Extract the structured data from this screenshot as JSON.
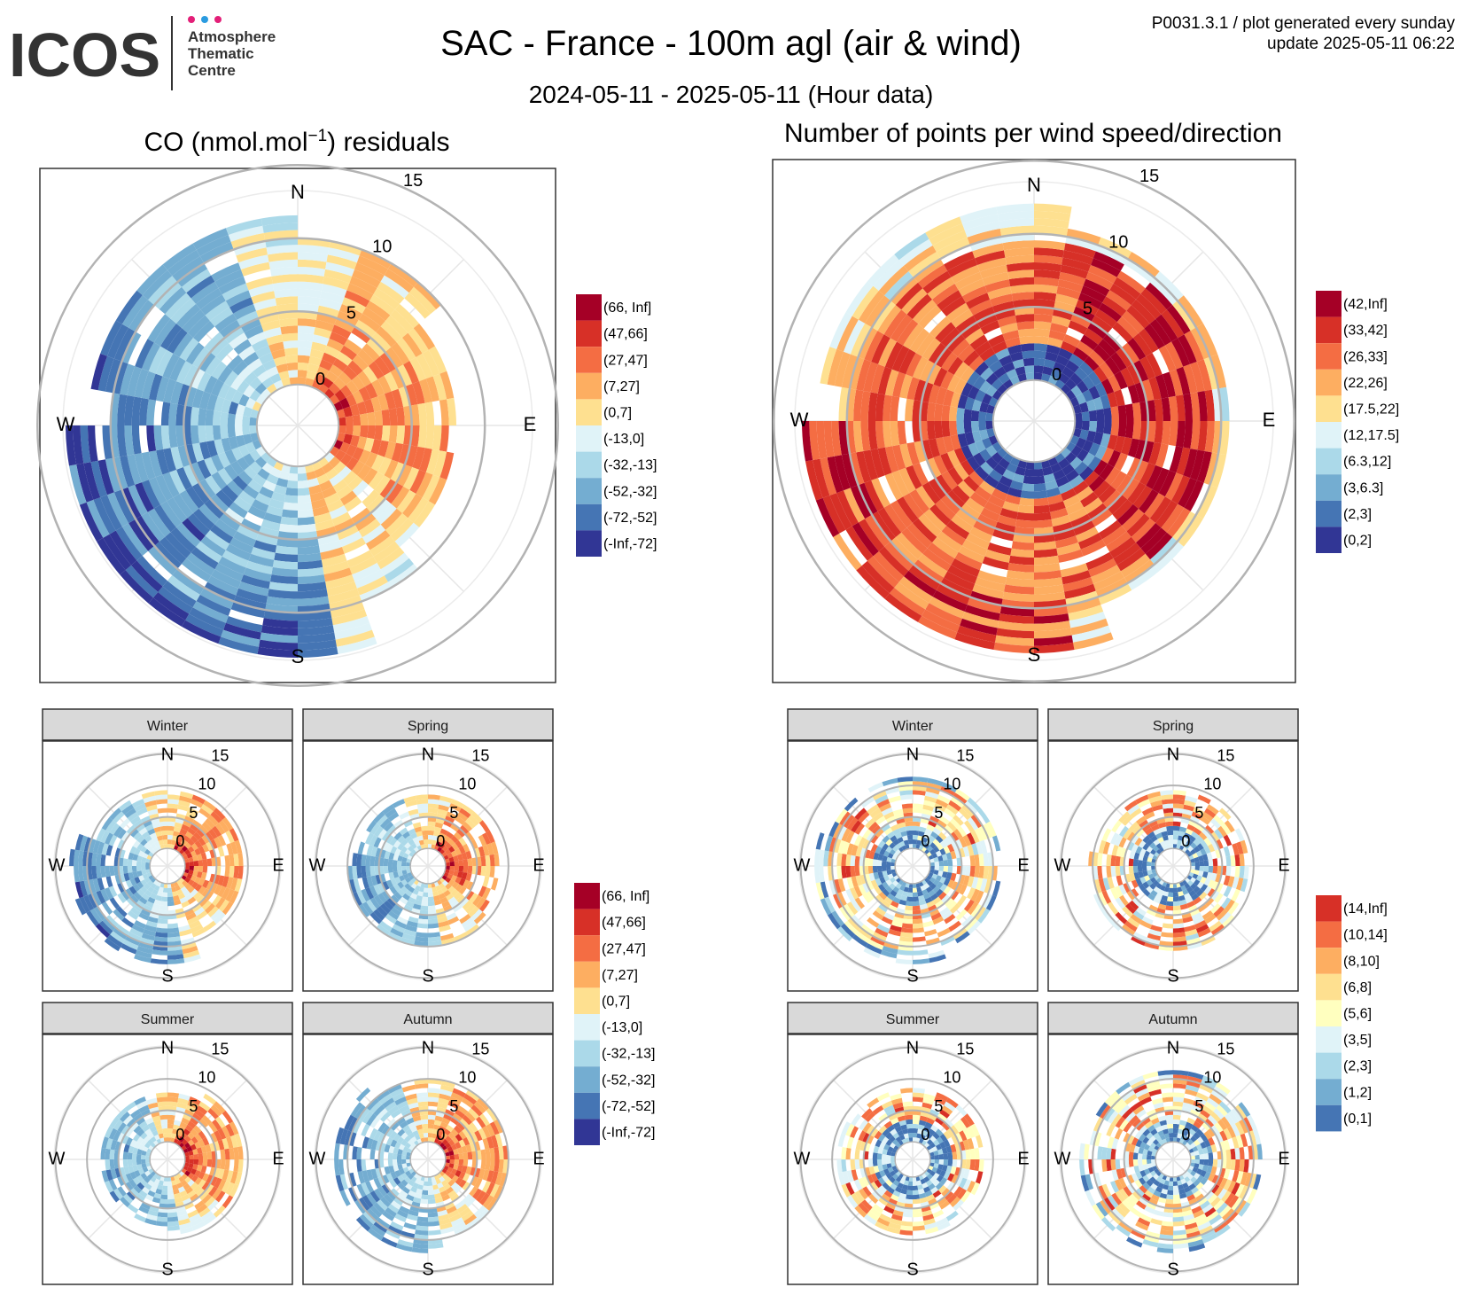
{
  "logo": {
    "wordmark": "ICOS",
    "line1": "Atmosphere",
    "line2": "Thematic",
    "line3": "Centre"
  },
  "header": {
    "title": "SAC - France - 100m agl (air & wind)",
    "subtitle": "2024-05-11 - 2025-05-11 (Hour data)",
    "meta_line1": "P0031.3.1 / plot generated every sunday",
    "meta_line2": "update  2025-05-11 06:22"
  },
  "left_title": {
    "pre": "CO (nmol.mol",
    "sup": "−1",
    "post": ") residuals"
  },
  "right_title": "Number of points per wind speed/direction",
  "compass": {
    "n": "N",
    "e": "E",
    "s": "S",
    "w": "W"
  },
  "speed_ticks": [
    "0",
    "5",
    "10",
    "15"
  ],
  "seasons": [
    "Winter",
    "Spring",
    "Summer",
    "Autumn"
  ],
  "legend_residuals": [
    "(66, Inf]",
    "(47,66]",
    "(27,47]",
    "(7,27]",
    "(0,7]",
    "(-13,0]",
    "(-32,-13]",
    "(-52,-32]",
    "(-72,-52]",
    "(-Inf,-72]"
  ],
  "legend_count": [
    "(42,Inf]",
    "(33,42]",
    "(26,33]",
    "(22,26]",
    "(17.5,22]",
    "(12,17.5]",
    "(6.3,12]",
    "(3,6.3]",
    "(2,3]",
    "(0,2]"
  ],
  "legend_season_count": [
    "(14,Inf]",
    "(10,14]",
    "(8,10]",
    "(6,8]",
    "(5,6]",
    "(3,5]",
    "(2,3]",
    "(1,2]",
    "(0,1]"
  ],
  "colors": {
    "residuals": [
      "#a50026",
      "#d73027",
      "#f46d43",
      "#fdae61",
      "#fee090",
      "#e0f3f8",
      "#abd9e9",
      "#74add1",
      "#4575b4",
      "#313695"
    ],
    "count": [
      "#a50026",
      "#d73027",
      "#f46d43",
      "#fdae61",
      "#fee090",
      "#e0f3f8",
      "#abd9e9",
      "#74add1",
      "#4575b4",
      "#313695"
    ],
    "season_count": [
      "#d73027",
      "#f46d43",
      "#fdae61",
      "#fee090",
      "#ffffbf",
      "#e0f3f8",
      "#abd9e9",
      "#74add1",
      "#4575b4"
    ],
    "strip": "#d9d9d9"
  },
  "chart_data": [
    {
      "type": "heatmap",
      "projection": "polar",
      "title": "CO (nmol.mol-1) residuals",
      "theta": "wind direction",
      "r": "wind speed",
      "r_ticks": [
        0,
        5,
        10,
        15
      ],
      "legend": "right",
      "classes": [
        "(66, Inf]",
        "(47,66]",
        "(27,47]",
        "(7,27]",
        "(0,7]",
        "(-13,0]",
        "(-32,-13]",
        "(-52,-32]",
        "(-72,-52]",
        "(-Inf,-72]"
      ]
    },
    {
      "type": "heatmap",
      "projection": "polar",
      "title": "Number of points per wind speed/direction",
      "theta": "wind direction",
      "r": "wind speed",
      "r_ticks": [
        0,
        5,
        10,
        15
      ],
      "legend": "right",
      "classes": [
        "(42,Inf]",
        "(33,42]",
        "(26,33]",
        "(22,26]",
        "(17.5,22]",
        "(12,17.5]",
        "(6.3,12]",
        "(3,6.3]",
        "(2,3]",
        "(0,2]"
      ]
    },
    {
      "type": "heatmap",
      "projection": "polar",
      "facets": [
        "Winter",
        "Spring",
        "Summer",
        "Autumn"
      ],
      "variable": "CO residuals",
      "r_ticks": [
        0,
        5,
        10,
        15
      ],
      "legend": "right"
    },
    {
      "type": "heatmap",
      "projection": "polar",
      "facets": [
        "Winter",
        "Spring",
        "Summer",
        "Autumn"
      ],
      "variable": "number of points",
      "r_ticks": [
        0,
        5,
        10,
        15
      ],
      "legend": "right",
      "classes": [
        "(14,Inf]",
        "(10,14]",
        "(8,10]",
        "(6,8]",
        "(5,6]",
        "(3,5]",
        "(2,3]",
        "(1,2]",
        "(0,1]"
      ]
    }
  ]
}
